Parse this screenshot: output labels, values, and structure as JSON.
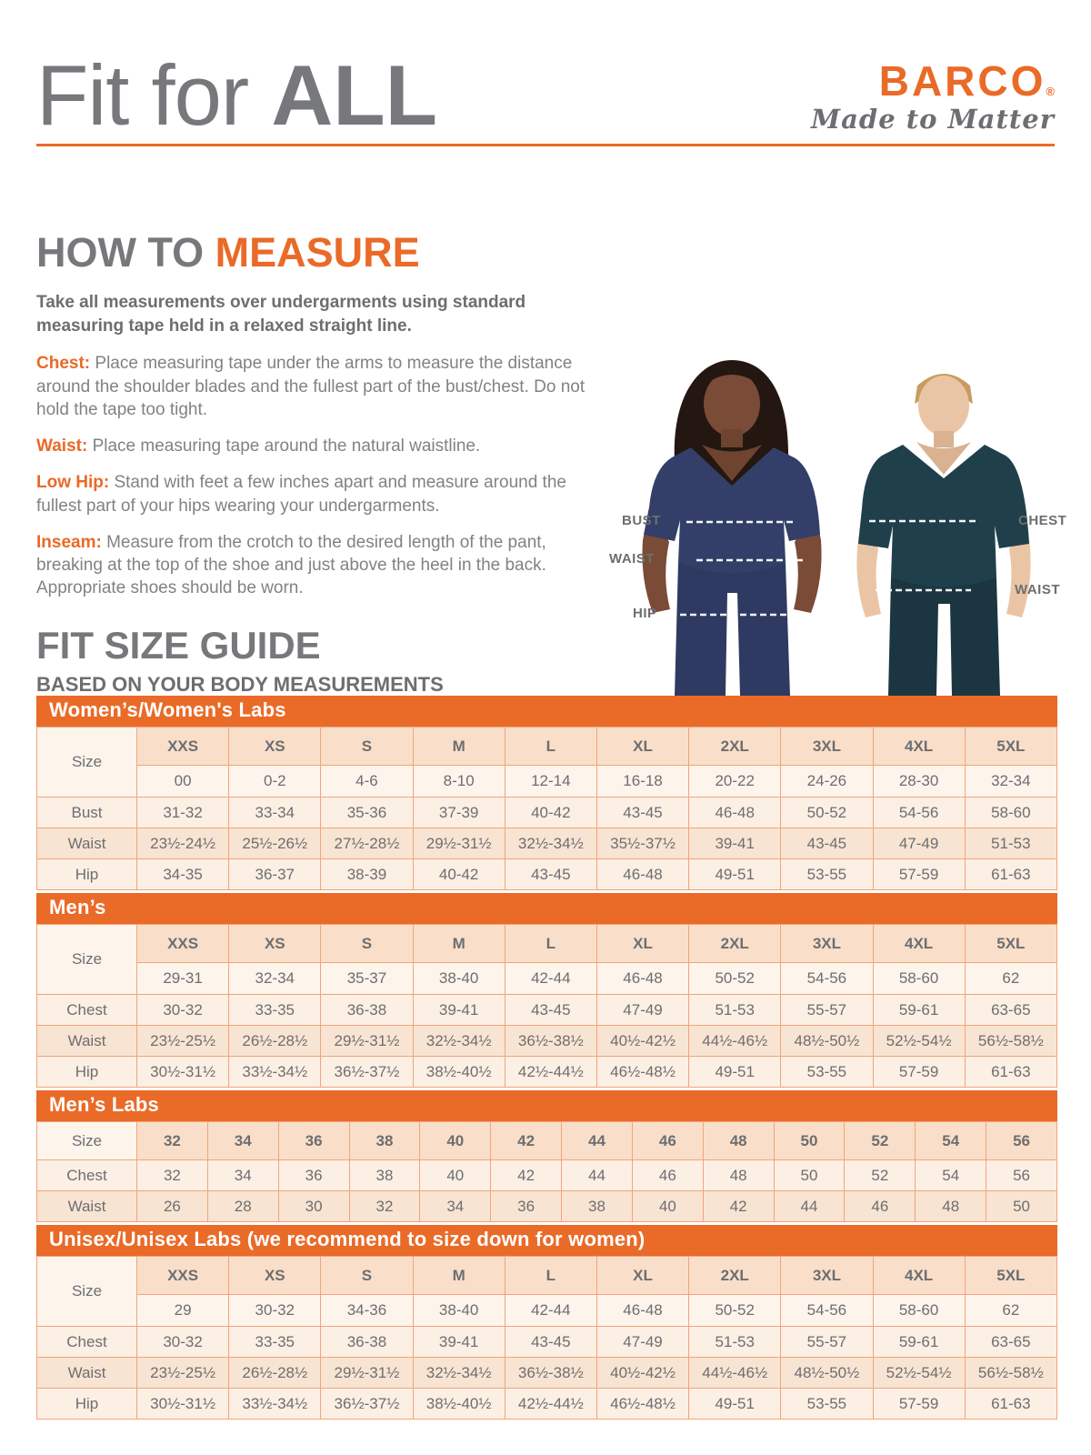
{
  "header": {
    "title_light": "Fit for ",
    "title_bold": "ALL"
  },
  "brand": {
    "name": "BARCO",
    "registered": "®",
    "tagline": "Made to Matter"
  },
  "colors": {
    "accent_orange": "#ea6a28",
    "heading_gray": "#77787b",
    "text_gray": "#6d6e71",
    "table_header_peach": "#f9dfc9",
    "table_row_light": "#fcefe4",
    "table_row_dark": "#f8e4d2",
    "womens_scrub_navy": "#333f68",
    "mens_scrub_teal": "#1f3f4b"
  },
  "how_to_measure": {
    "heading_gray": "HOW TO ",
    "heading_orange": "MEASURE",
    "intro": "Take all measurements over undergarments using standard measuring tape held in a relaxed straight line.",
    "steps": [
      {
        "label": "Chest:",
        "text": " Place measuring tape under the arms to measure the distance around the shoulder blades and the fullest part of the bust/chest. Do not hold the tape too tight."
      },
      {
        "label": "Waist:",
        "text": " Place measuring tape around the natural waistline."
      },
      {
        "label": "Low Hip:",
        "text": " Stand with feet a few inches apart and measure around the fullest part of your hips wearing your undergarments."
      },
      {
        "label": "Inseam:",
        "text": " Measure from the crotch to the desired length of the pant, breaking at the top of the shoe and just above the heel in the back. Appropriate shoes should be worn."
      }
    ]
  },
  "photo": {
    "labels": {
      "bust": "BUST",
      "waist_left": "WAIST",
      "hip": "HIP",
      "chest": "CHEST",
      "waist_right": "WAIST"
    }
  },
  "size_guide": {
    "heading": "FIT SIZE GUIDE",
    "subheading": "BASED ON YOUR BODY MEASUREMENTS"
  },
  "size_tables": [
    {
      "title": "Women’s/Women's Labs",
      "size_label": "Size",
      "size_names": [
        "XXS",
        "XS",
        "S",
        "M",
        "L",
        "XL",
        "2XL",
        "3XL",
        "4XL",
        "5XL"
      ],
      "size_numbers": [
        "00",
        "0-2",
        "4-6",
        "8-10",
        "12-14",
        "16-18",
        "20-22",
        "24-26",
        "28-30",
        "32-34"
      ],
      "rows": [
        {
          "label": "Bust",
          "values": [
            "31-32",
            "33-34",
            "35-36",
            "37-39",
            "40-42",
            "43-45",
            "46-48",
            "50-52",
            "54-56",
            "58-60"
          ]
        },
        {
          "label": "Waist",
          "values": [
            "23½-24½",
            "25½-26½",
            "27½-28½",
            "29½-31½",
            "32½-34½",
            "35½-37½",
            "39-41",
            "43-45",
            "47-49",
            "51-53"
          ]
        },
        {
          "label": "Hip",
          "values": [
            "34-35",
            "36-37",
            "38-39",
            "40-42",
            "43-45",
            "46-48",
            "49-51",
            "53-55",
            "57-59",
            "61-63"
          ]
        }
      ]
    },
    {
      "title": "Men’s",
      "size_label": "Size",
      "size_names": [
        "XXS",
        "XS",
        "S",
        "M",
        "L",
        "XL",
        "2XL",
        "3XL",
        "4XL",
        "5XL"
      ],
      "size_numbers": [
        "29-31",
        "32-34",
        "35-37",
        "38-40",
        "42-44",
        "46-48",
        "50-52",
        "54-56",
        "58-60",
        "62"
      ],
      "rows": [
        {
          "label": "Chest",
          "values": [
            "30-32",
            "33-35",
            "36-38",
            "39-41",
            "43-45",
            "47-49",
            "51-53",
            "55-57",
            "59-61",
            "63-65"
          ]
        },
        {
          "label": "Waist",
          "values": [
            "23½-25½",
            "26½-28½",
            "29½-31½",
            "32½-34½",
            "36½-38½",
            "40½-42½",
            "44½-46½",
            "48½-50½",
            "52½-54½",
            "56½-58½"
          ]
        },
        {
          "label": "Hip",
          "values": [
            "30½-31½",
            "33½-34½",
            "36½-37½",
            "38½-40½",
            "42½-44½",
            "46½-48½",
            "49-51",
            "53-55",
            "57-59",
            "61-63"
          ]
        }
      ]
    },
    {
      "title": "Men’s Labs",
      "size_label": "Size",
      "size_names": [
        "32",
        "34",
        "36",
        "38",
        "40",
        "42",
        "44",
        "46",
        "48",
        "50",
        "52",
        "54",
        "56"
      ],
      "size_numbers": null,
      "rows": [
        {
          "label": "Chest",
          "values": [
            "32",
            "34",
            "36",
            "38",
            "40",
            "42",
            "44",
            "46",
            "48",
            "50",
            "52",
            "54",
            "56"
          ]
        },
        {
          "label": "Waist",
          "values": [
            "26",
            "28",
            "30",
            "32",
            "34",
            "36",
            "38",
            "40",
            "42",
            "44",
            "46",
            "48",
            "50"
          ]
        }
      ]
    },
    {
      "title": "Unisex/Unisex Labs (we recommend to size down for women)",
      "size_label": "Size",
      "size_names": [
        "XXS",
        "XS",
        "S",
        "M",
        "L",
        "XL",
        "2XL",
        "3XL",
        "4XL",
        "5XL"
      ],
      "size_numbers": [
        "29",
        "30-32",
        "34-36",
        "38-40",
        "42-44",
        "46-48",
        "50-52",
        "54-56",
        "58-60",
        "62"
      ],
      "rows": [
        {
          "label": "Chest",
          "values": [
            "30-32",
            "33-35",
            "36-38",
            "39-41",
            "43-45",
            "47-49",
            "51-53",
            "55-57",
            "59-61",
            "63-65"
          ]
        },
        {
          "label": "Waist",
          "values": [
            "23½-25½",
            "26½-28½",
            "29½-31½",
            "32½-34½",
            "36½-38½",
            "40½-42½",
            "44½-46½",
            "48½-50½",
            "52½-54½",
            "56½-58½"
          ]
        },
        {
          "label": "Hip",
          "values": [
            "30½-31½",
            "33½-34½",
            "36½-37½",
            "38½-40½",
            "42½-44½",
            "46½-48½",
            "49-51",
            "53-55",
            "57-59",
            "61-63"
          ]
        }
      ]
    }
  ]
}
